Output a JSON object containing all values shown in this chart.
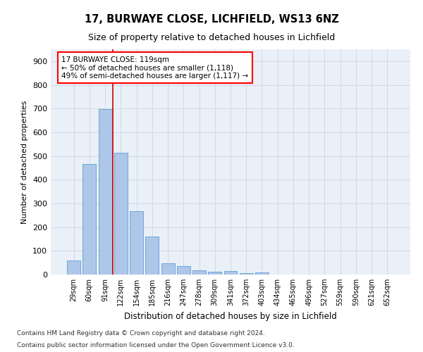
{
  "title1": "17, BURWAYE CLOSE, LICHFIELD, WS13 6NZ",
  "title2": "Size of property relative to detached houses in Lichfield",
  "xlabel": "Distribution of detached houses by size in Lichfield",
  "ylabel": "Number of detached properties",
  "footnote1": "Contains HM Land Registry data © Crown copyright and database right 2024.",
  "footnote2": "Contains public sector information licensed under the Open Government Licence v3.0.",
  "categories": [
    "29sqm",
    "60sqm",
    "91sqm",
    "122sqm",
    "154sqm",
    "185sqm",
    "216sqm",
    "247sqm",
    "278sqm",
    "309sqm",
    "341sqm",
    "372sqm",
    "403sqm",
    "434sqm",
    "465sqm",
    "496sqm",
    "527sqm",
    "559sqm",
    "590sqm",
    "621sqm",
    "652sqm"
  ],
  "values": [
    60,
    467,
    697,
    514,
    267,
    160,
    48,
    35,
    18,
    13,
    14,
    5,
    8,
    0,
    0,
    0,
    0,
    0,
    0,
    0,
    0
  ],
  "bar_color": "#aec6e8",
  "bar_edge_color": "#5a9fd4",
  "grid_color": "#d0d8e8",
  "background_color": "#eaf0f8",
  "vline_color": "#cc0000",
  "vline_x_index": 2.5,
  "annotation_line1": "17 BURWAYE CLOSE: 119sqm",
  "annotation_line2": "← 50% of detached houses are smaller (1,118)",
  "annotation_line3": "49% of semi-detached houses are larger (1,117) →",
  "ylim": [
    0,
    950
  ],
  "yticks": [
    0,
    100,
    200,
    300,
    400,
    500,
    600,
    700,
    800,
    900
  ]
}
